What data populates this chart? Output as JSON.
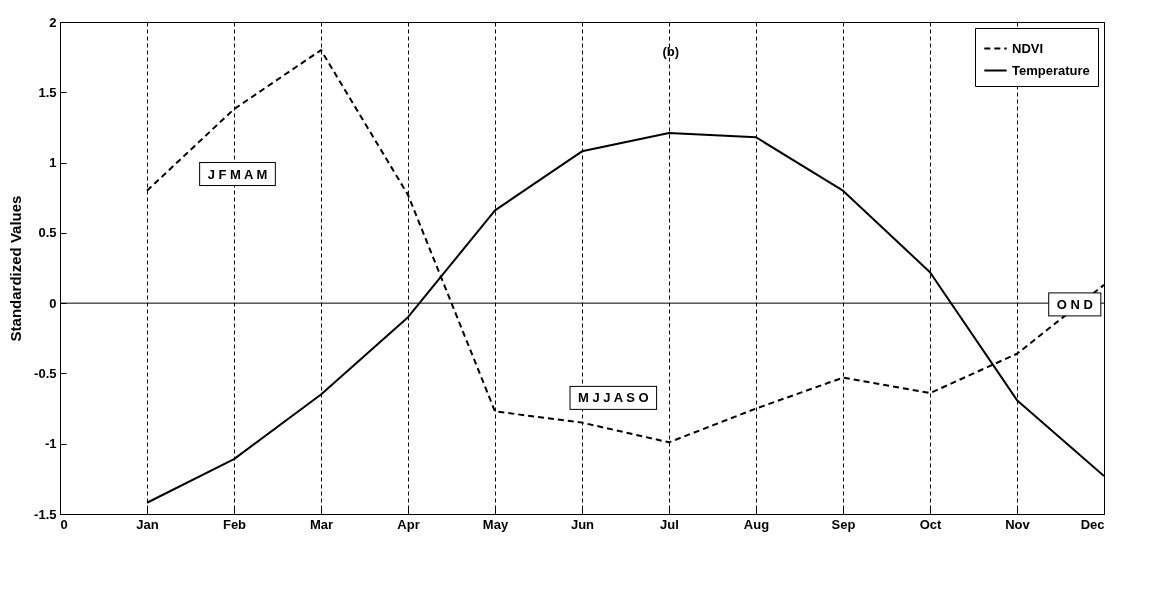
{
  "chart_data": {
    "type": "line",
    "ylabel": "Standardized Values",
    "categories": [
      "0",
      "Jan",
      "Feb",
      "Mar",
      "Apr",
      "May",
      "Jun",
      "Jul",
      "Aug",
      "Sep",
      "Oct",
      "Nov",
      "Dec"
    ],
    "series": [
      {
        "name": "NDVI",
        "color": "#000000",
        "line_style": "dashed",
        "values": [
          null,
          0.8,
          1.38,
          1.8,
          0.77,
          -0.77,
          -0.85,
          -0.99,
          -0.75,
          -0.53,
          -0.64,
          -0.36,
          0.13
        ]
      },
      {
        "name": "Temperature",
        "color": "#000000",
        "line_style": "solid",
        "values": [
          null,
          -1.42,
          -1.11,
          -0.65,
          -0.1,
          0.66,
          1.08,
          1.21,
          1.18,
          0.8,
          0.22,
          -0.69,
          -1.23
        ]
      }
    ],
    "ylim": [
      -1.5,
      2
    ],
    "yticks": [
      -1.5,
      -1,
      -0.5,
      0,
      0.5,
      1,
      1.5,
      2
    ],
    "grid": "x",
    "legend": "top right",
    "ref_lines": [
      {
        "axis": "y",
        "value": 0,
        "color": "#000000",
        "line_style": "solid"
      }
    ],
    "annotations": [
      "(b)",
      "J F M A M",
      "M J J A S O",
      "O N D"
    ]
  }
}
